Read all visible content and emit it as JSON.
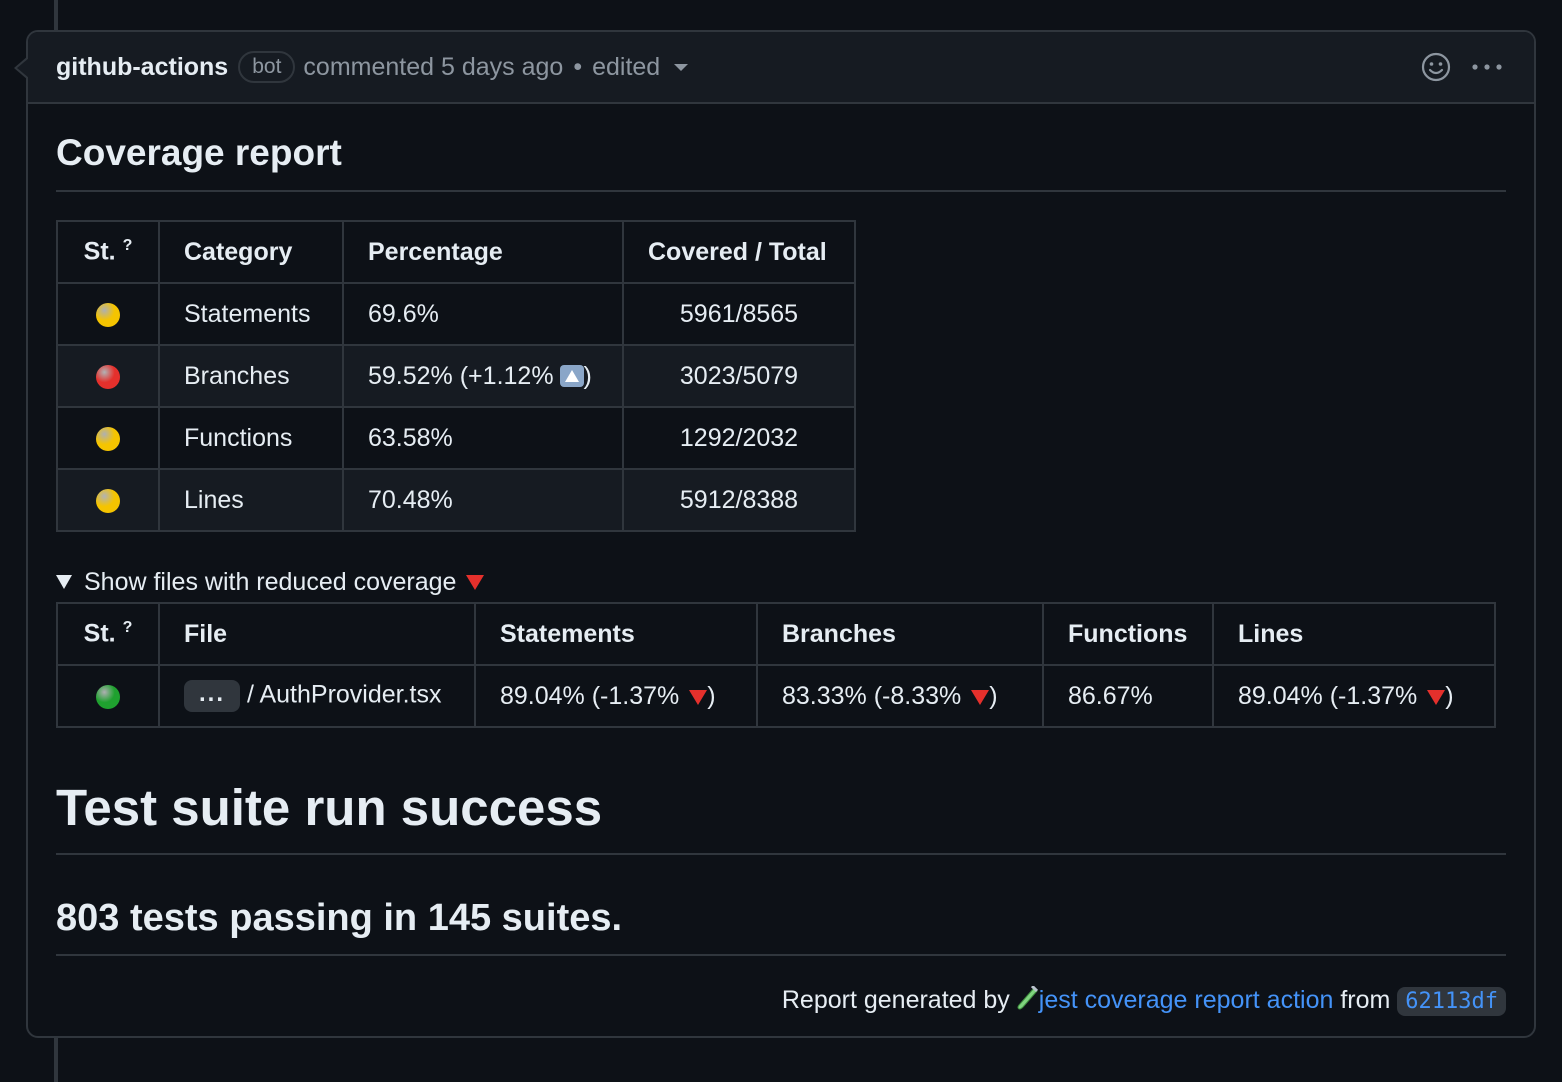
{
  "comment": {
    "author": "github-actions",
    "badge": "bot",
    "action": "commented 5 days ago",
    "separator": "•",
    "edited": "edited"
  },
  "title": "Coverage report",
  "summary_table": {
    "headers": [
      "St.",
      "?",
      "Category",
      "Percentage",
      "Covered / Total"
    ],
    "rows": [
      {
        "status_color": "#f5c400",
        "category": "Statements",
        "percentage": "69.6%",
        "covered": "5961/8565"
      },
      {
        "status_color": "#e5302c",
        "category": "Branches",
        "percentage": "59.52% (+1.12%",
        "percentage_close": ")",
        "covered": "3023/5079"
      },
      {
        "status_color": "#f5c400",
        "category": "Functions",
        "percentage": "63.58%",
        "covered": "1292/2032"
      },
      {
        "status_color": "#f5c400",
        "category": "Lines",
        "percentage": "70.48%",
        "covered": "5912/8388"
      }
    ]
  },
  "details": {
    "summary": "Show files with reduced coverage"
  },
  "files_table": {
    "headers": [
      "St.",
      "?",
      "File",
      "Statements",
      "Branches",
      "Functions",
      "Lines"
    ],
    "rows": [
      {
        "status_color": "#1fa12f",
        "ellipsis": "...",
        "file": "/ AuthProvider.tsx",
        "statements": "89.04% (-1.37%",
        "branches": "83.33% (-8.33%",
        "functions": "86.67%",
        "lines": "89.04% (-1.37%",
        "close": ")"
      }
    ]
  },
  "suite_title": "Test suite run success",
  "tests_line": "803 tests passing in 145 suites.",
  "footer": {
    "prefix": "Report generated by",
    "link": "jest coverage report action",
    "from": "from",
    "sha": "62113df"
  }
}
